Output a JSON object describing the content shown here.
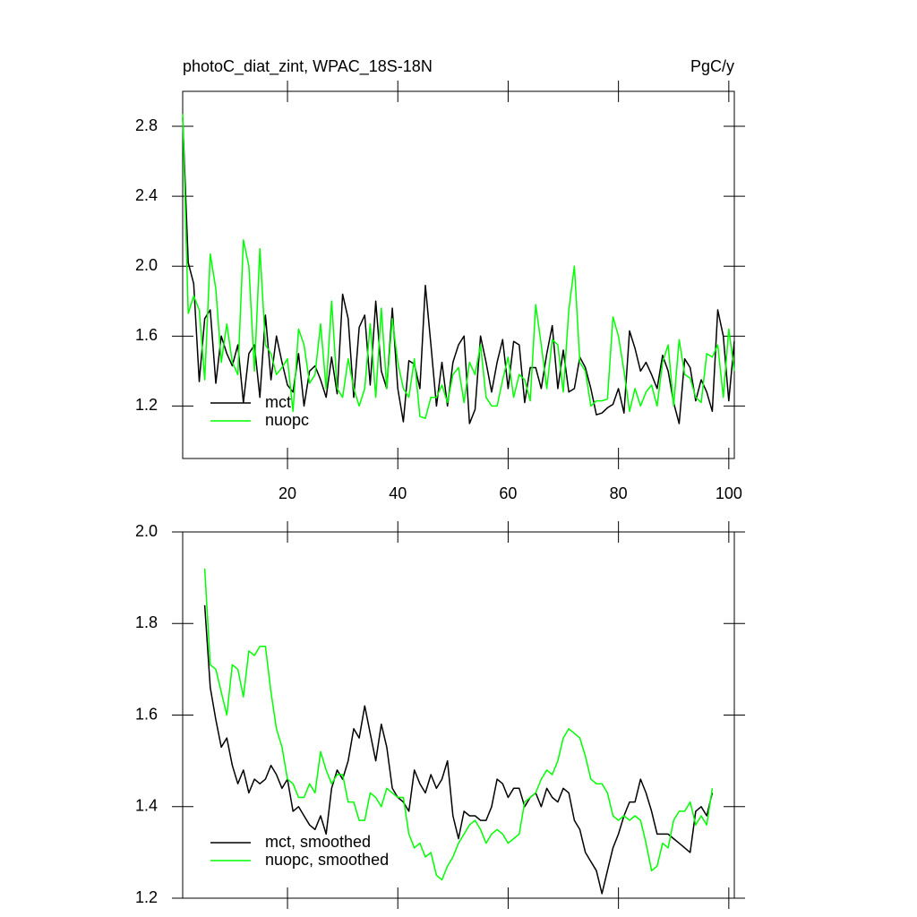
{
  "chart_data": [
    {
      "type": "line",
      "title": "photoC_diat_zint, WPAC_18S-18N",
      "subtitle": "PgC/y",
      "x": [
        1,
        2,
        3,
        4,
        5,
        6,
        7,
        8,
        9,
        10,
        11,
        12,
        13,
        14,
        15,
        16,
        17,
        18,
        19,
        20,
        21,
        22,
        23,
        24,
        25,
        26,
        27,
        28,
        29,
        30,
        31,
        32,
        33,
        34,
        35,
        36,
        37,
        38,
        39,
        40,
        41,
        42,
        43,
        44,
        45,
        46,
        47,
        48,
        49,
        50,
        51,
        52,
        53,
        54,
        55,
        56,
        57,
        58,
        59,
        60,
        61,
        62,
        63,
        64,
        65,
        66,
        67,
        68,
        69,
        70,
        71,
        72,
        73,
        74,
        75,
        76,
        77,
        78,
        79,
        80,
        81,
        82,
        83,
        84,
        85,
        86,
        87,
        88,
        89,
        90,
        91,
        92,
        93,
        94,
        95,
        96,
        97,
        98,
        99,
        100,
        101
      ],
      "series": [
        {
          "name": "mct",
          "color": "#000000",
          "values": [
            2.85,
            2.02,
            1.9,
            1.34,
            1.7,
            1.75,
            1.33,
            1.6,
            1.5,
            1.43,
            1.55,
            1.22,
            1.5,
            1.55,
            1.25,
            1.72,
            1.35,
            1.6,
            1.45,
            1.32,
            1.28,
            1.5,
            1.2,
            1.4,
            1.43,
            1.35,
            1.25,
            1.48,
            1.27,
            1.84,
            1.7,
            1.25,
            1.65,
            1.72,
            1.32,
            1.8,
            1.4,
            1.3,
            1.76,
            1.3,
            1.11,
            1.46,
            1.44,
            1.3,
            1.89,
            1.55,
            1.2,
            1.45,
            1.2,
            1.45,
            1.55,
            1.6,
            1.1,
            1.18,
            1.6,
            1.45,
            1.28,
            1.45,
            1.58,
            1.3,
            1.57,
            1.55,
            1.22,
            1.42,
            1.42,
            1.3,
            1.5,
            1.66,
            1.3,
            1.52,
            1.28,
            1.3,
            1.48,
            1.42,
            1.3,
            1.15,
            1.16,
            1.19,
            1.21,
            1.3,
            1.16,
            1.63,
            1.53,
            1.4,
            1.45,
            1.38,
            1.3,
            1.49,
            1.4,
            1.22,
            1.1,
            1.47,
            1.42,
            1.23,
            1.35,
            1.28,
            1.17,
            1.75,
            1.6,
            1.23,
            1.57
          ]
        },
        {
          "name": "nuopc",
          "color": "#00ff00",
          "values": [
            2.87,
            1.73,
            1.83,
            1.75,
            1.35,
            2.07,
            1.87,
            1.45,
            1.67,
            1.45,
            1.38,
            2.15,
            2.0,
            1.4,
            2.1,
            1.55,
            1.5,
            1.38,
            1.42,
            1.47,
            1.17,
            1.64,
            1.55,
            1.33,
            1.38,
            1.67,
            1.3,
            1.8,
            1.3,
            1.25,
            1.47,
            1.3,
            1.2,
            1.3,
            1.67,
            1.25,
            1.76,
            1.3,
            1.7,
            1.45,
            1.3,
            1.25,
            1.47,
            1.14,
            1.13,
            1.25,
            1.25,
            1.32,
            1.22,
            1.38,
            1.42,
            1.22,
            1.45,
            1.38,
            1.55,
            1.25,
            1.2,
            1.2,
            1.35,
            1.48,
            1.25,
            1.38,
            1.35,
            1.23,
            1.78,
            1.55,
            1.3,
            1.58,
            1.55,
            1.28,
            1.75,
            2.0,
            1.45,
            1.4,
            1.2,
            1.23,
            1.23,
            1.24,
            1.71,
            1.6,
            1.4,
            1.17,
            1.3,
            1.2,
            1.28,
            1.32,
            1.2,
            1.45,
            1.55,
            1.2,
            1.58,
            1.38,
            1.36,
            1.25,
            1.22,
            1.5,
            1.48,
            1.55,
            1.25,
            1.64,
            1.4
          ]
        }
      ],
      "xlim": [
        1,
        101
      ],
      "ylim": [
        0.9,
        3.0
      ],
      "xticks": [
        20,
        40,
        60,
        80,
        100
      ],
      "yticks": [
        1.2,
        1.6,
        {
          "value": 2,
          "label": "2.0"
        },
        2.4,
        2.8
      ],
      "show_xtick_labels": true,
      "legend": "lower left"
    },
    {
      "type": "line",
      "x": [
        5,
        6,
        7,
        8,
        9,
        10,
        11,
        12,
        13,
        14,
        15,
        16,
        17,
        18,
        19,
        20,
        21,
        22,
        23,
        24,
        25,
        26,
        27,
        28,
        29,
        30,
        31,
        32,
        33,
        34,
        35,
        36,
        37,
        38,
        39,
        40,
        41,
        42,
        43,
        44,
        45,
        46,
        47,
        48,
        49,
        50,
        51,
        52,
        53,
        54,
        55,
        56,
        57,
        58,
        59,
        60,
        61,
        62,
        63,
        64,
        65,
        66,
        67,
        68,
        69,
        70,
        71,
        72,
        73,
        74,
        75,
        76,
        77,
        78,
        79,
        80,
        81,
        82,
        83,
        84,
        85,
        86,
        87,
        88,
        89,
        90,
        91,
        92,
        93,
        94,
        95,
        96,
        97
      ],
      "series": [
        {
          "name": "mct, smoothed",
          "color": "#000000",
          "values": [
            1.84,
            1.66,
            1.59,
            1.53,
            1.55,
            1.49,
            1.45,
            1.48,
            1.43,
            1.46,
            1.45,
            1.46,
            1.49,
            1.47,
            1.44,
            1.46,
            1.39,
            1.4,
            1.38,
            1.36,
            1.35,
            1.38,
            1.34,
            1.44,
            1.48,
            1.46,
            1.5,
            1.57,
            1.55,
            1.62,
            1.56,
            1.5,
            1.58,
            1.53,
            1.44,
            1.42,
            1.41,
            1.39,
            1.48,
            1.45,
            1.43,
            1.47,
            1.44,
            1.46,
            1.5,
            1.38,
            1.33,
            1.39,
            1.38,
            1.38,
            1.37,
            1.37,
            1.4,
            1.46,
            1.45,
            1.42,
            1.44,
            1.44,
            1.4,
            1.42,
            1.43,
            1.4,
            1.44,
            1.42,
            1.41,
            1.44,
            1.43,
            1.37,
            1.35,
            1.3,
            1.28,
            1.26,
            1.21,
            1.26,
            1.31,
            1.34,
            1.38,
            1.41,
            1.41,
            1.46,
            1.43,
            1.39,
            1.34,
            1.34,
            1.34,
            1.33,
            1.32,
            1.31,
            1.3,
            1.39,
            1.4,
            1.38,
            1.43
          ]
        },
        {
          "name": "nuopc, smoothed",
          "color": "#00ff00",
          "values": [
            1.92,
            1.71,
            1.7,
            1.65,
            1.6,
            1.71,
            1.7,
            1.64,
            1.74,
            1.73,
            1.75,
            1.75,
            1.65,
            1.57,
            1.53,
            1.46,
            1.45,
            1.42,
            1.42,
            1.45,
            1.43,
            1.52,
            1.48,
            1.45,
            1.47,
            1.47,
            1.41,
            1.41,
            1.37,
            1.37,
            1.43,
            1.42,
            1.4,
            1.44,
            1.43,
            1.42,
            1.42,
            1.34,
            1.31,
            1.32,
            1.29,
            1.3,
            1.25,
            1.24,
            1.27,
            1.29,
            1.32,
            1.34,
            1.36,
            1.37,
            1.35,
            1.32,
            1.34,
            1.35,
            1.34,
            1.32,
            1.33,
            1.34,
            1.41,
            1.42,
            1.43,
            1.46,
            1.48,
            1.47,
            1.5,
            1.55,
            1.57,
            1.56,
            1.55,
            1.51,
            1.46,
            1.45,
            1.45,
            1.43,
            1.38,
            1.37,
            1.38,
            1.37,
            1.38,
            1.37,
            1.32,
            1.26,
            1.27,
            1.32,
            1.31,
            1.37,
            1.39,
            1.39,
            1.41,
            1.36,
            1.38,
            1.36,
            1.44
          ]
        }
      ],
      "xlim": [
        1,
        101
      ],
      "ylim": [
        1.2,
        2.0
      ],
      "xticks": [
        20,
        40,
        60,
        80,
        100
      ],
      "yticks": [
        1.2,
        1.4,
        1.6,
        1.8,
        {
          "value": 2,
          "label": "2.0"
        }
      ],
      "show_xtick_labels": false,
      "legend": "lower left"
    }
  ]
}
